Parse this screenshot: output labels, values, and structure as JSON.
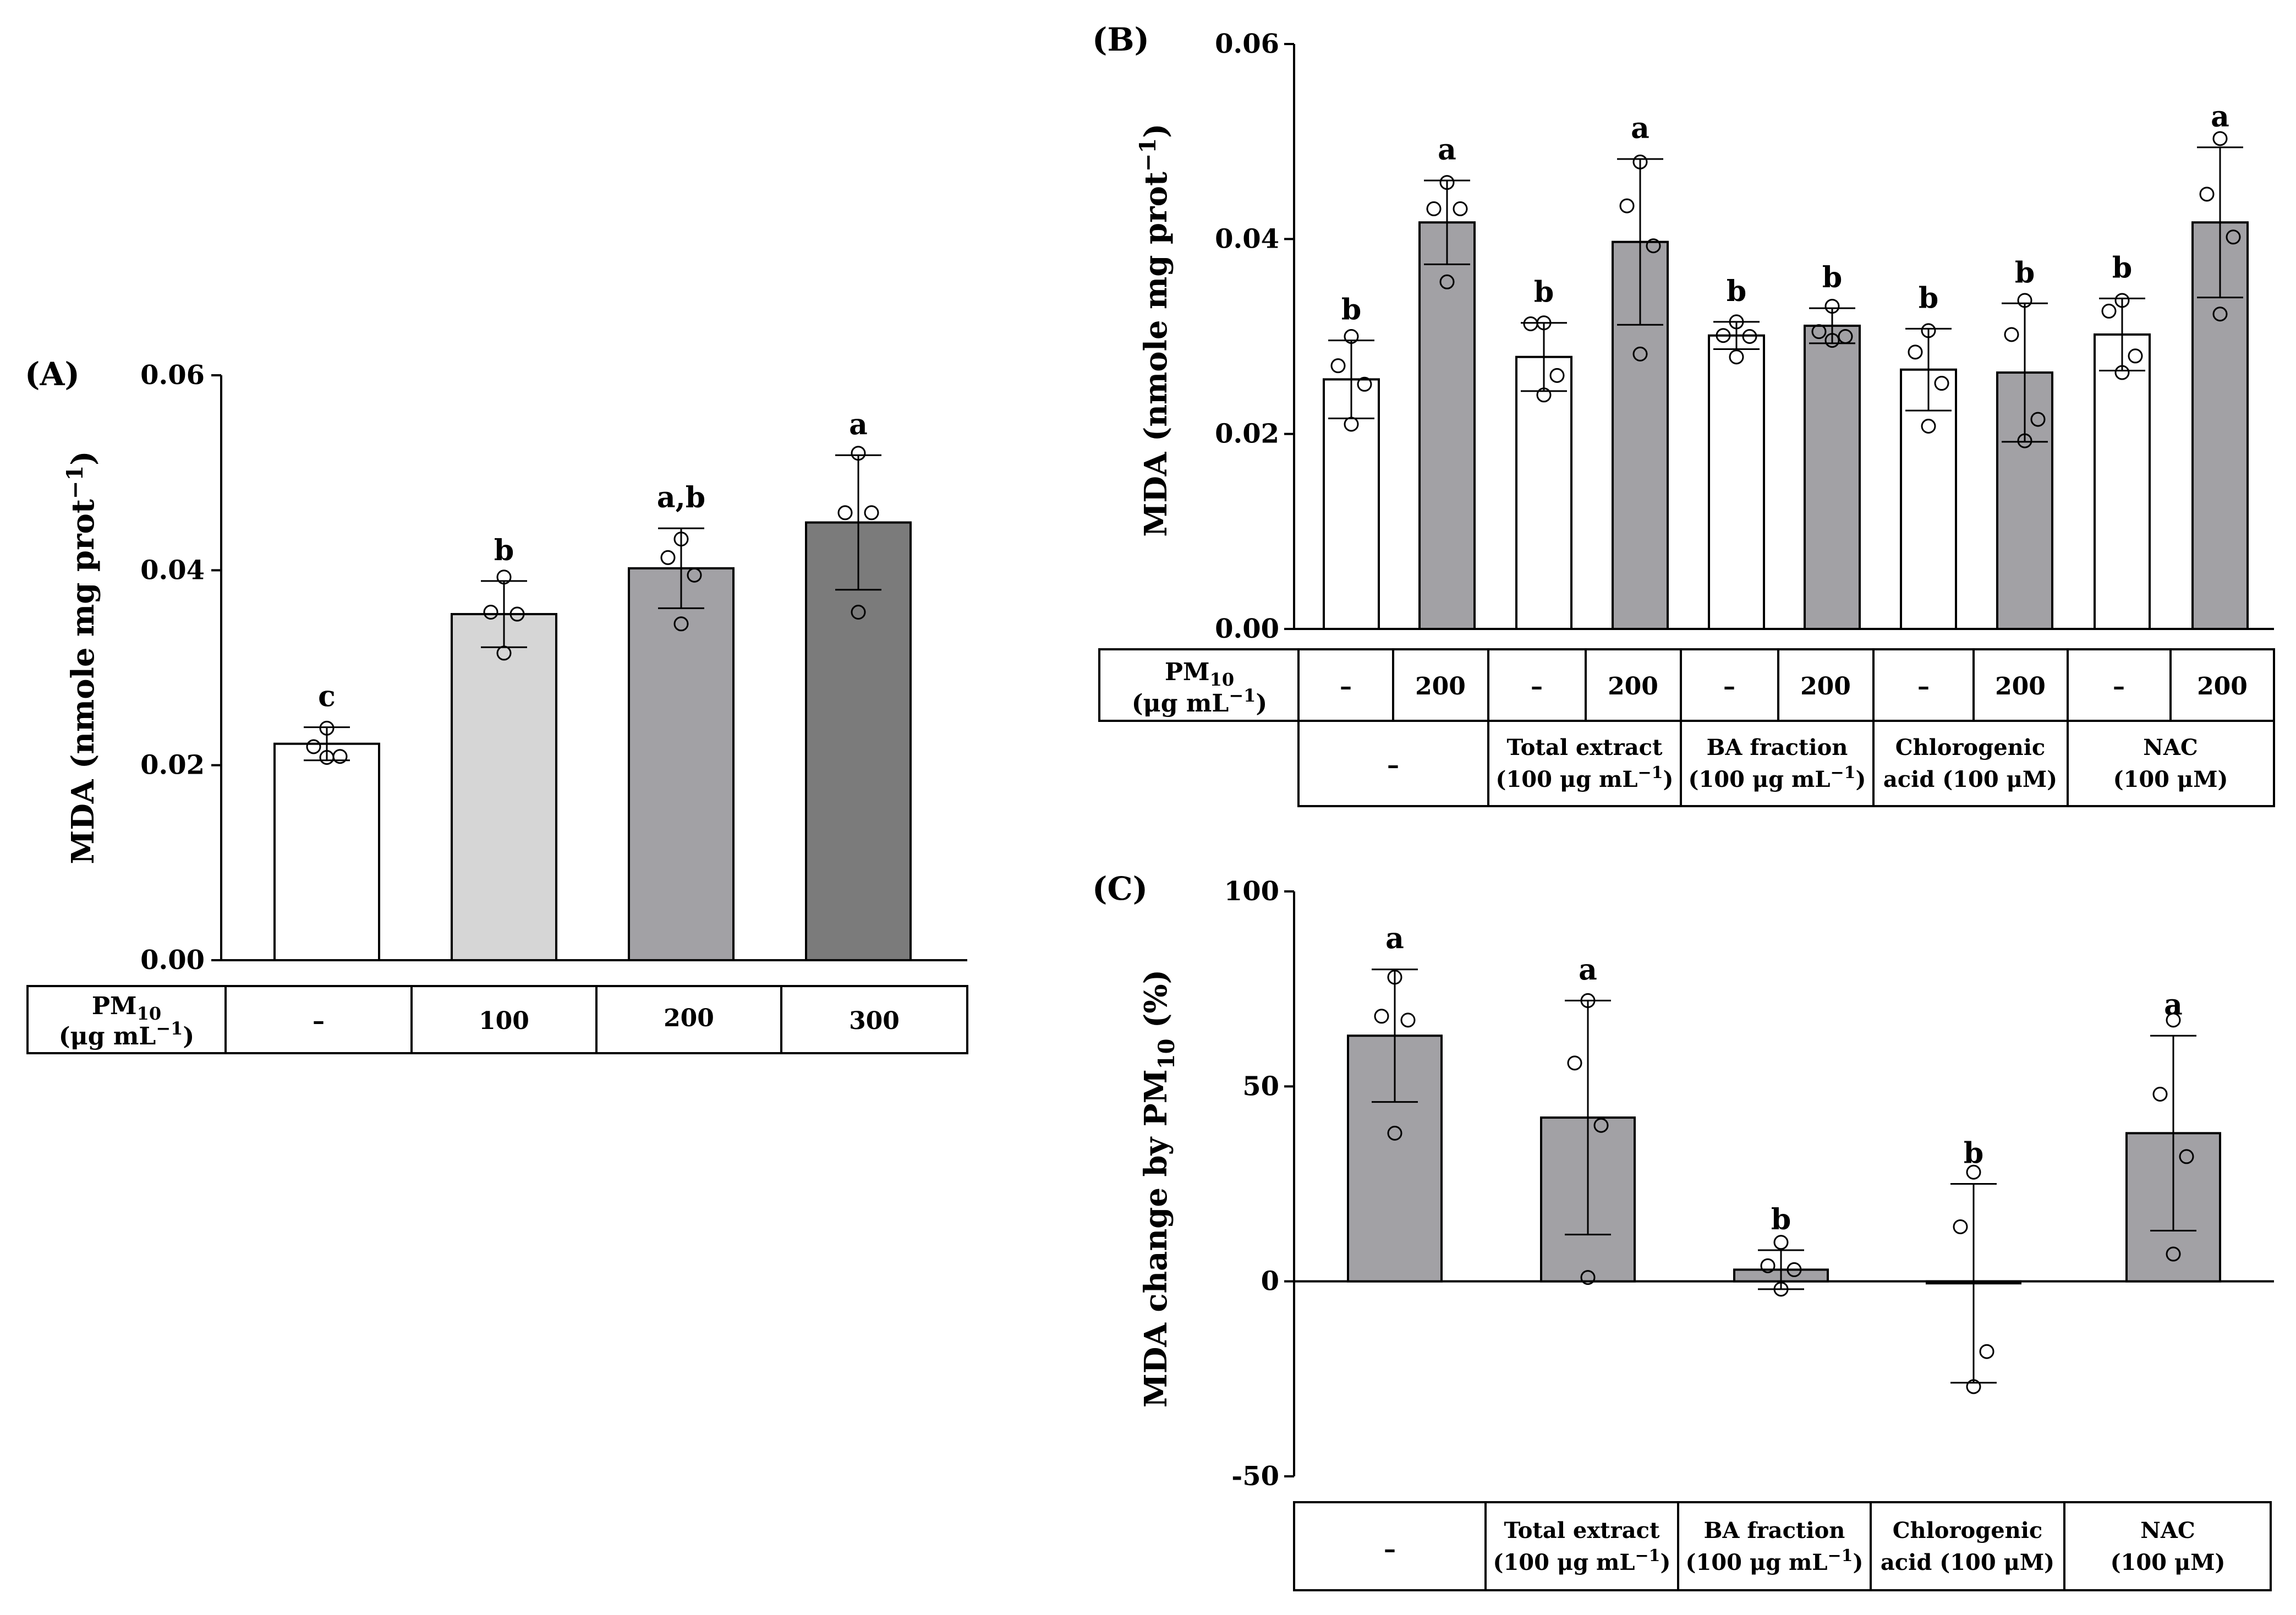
{
  "chart_data": [
    {
      "panel": "(A)",
      "type": "bar",
      "ylabel": "MDA (nmole mg prot",
      "ylabel_sup": "−1",
      "ylabel_close": ")",
      "ylim": [
        0,
        0.06
      ],
      "yticks": [
        "0.00",
        "0.02",
        "0.04",
        "0.06"
      ],
      "yticks_values": [
        0,
        0.02,
        0.04,
        0.06
      ],
      "bars": [
        {
          "value": 0.0222,
          "err": 0.0017,
          "sig": "c",
          "fill": "#ffffff",
          "points": [
            0.0238,
            0.0219,
            0.0209,
            0.0208
          ]
        },
        {
          "value": 0.0355,
          "err": 0.0034,
          "sig": "b",
          "fill": "#d6d6d6",
          "points": [
            0.0393,
            0.0357,
            0.0355,
            0.0315
          ]
        },
        {
          "value": 0.0402,
          "err": 0.0041,
          "sig": "a,b",
          "fill": "#a2a1a5",
          "points": [
            0.0432,
            0.0413,
            0.0395,
            0.0345
          ]
        },
        {
          "value": 0.0449,
          "err": 0.0069,
          "sig": "a",
          "fill": "#7b7b7b",
          "points": [
            0.052,
            0.0459,
            0.0459,
            0.0357
          ]
        }
      ],
      "table": {
        "header": "PM",
        "header_sub": "10",
        "unit": "(μg mL",
        "unit_sup": "−1",
        "unit_close": ")",
        "cells": [
          "–",
          "100",
          "200",
          "300"
        ]
      }
    },
    {
      "panel": "(B)",
      "type": "bar",
      "ylabel": "MDA (nmole mg prot",
      "ylabel_sup": "−1",
      "ylabel_close": ")",
      "ylim": [
        0,
        0.06
      ],
      "yticks": [
        "0.00",
        "0.02",
        "0.04",
        "0.06"
      ],
      "yticks_values": [
        0,
        0.02,
        0.04,
        0.06
      ],
      "bars": [
        {
          "value": 0.0256,
          "err": 0.004,
          "sig": "b",
          "fill": "#ffffff",
          "points": [
            0.03,
            0.027,
            0.0251,
            0.021
          ]
        },
        {
          "value": 0.0417,
          "err": 0.0043,
          "sig": "a",
          "fill": "#a2a1a5",
          "points": [
            0.0458,
            0.0431,
            0.0431,
            0.0356
          ]
        },
        {
          "value": 0.0279,
          "err": 0.0035,
          "sig": "b",
          "fill": "#ffffff",
          "points": [
            0.0314,
            0.0313,
            0.026,
            0.024
          ]
        },
        {
          "value": 0.0397,
          "err": 0.0085,
          "sig": "a",
          "fill": "#a2a1a5",
          "points": [
            0.0479,
            0.0434,
            0.0393,
            0.0282
          ]
        },
        {
          "value": 0.0301,
          "err": 0.0014,
          "sig": "b",
          "fill": "#ffffff",
          "points": [
            0.0315,
            0.0301,
            0.03,
            0.0279
          ]
        },
        {
          "value": 0.0311,
          "err": 0.0018,
          "sig": "b",
          "fill": "#a2a1a5",
          "points": [
            0.0331,
            0.0305,
            0.03,
            0.0296
          ]
        },
        {
          "value": 0.0266,
          "err": 0.0042,
          "sig": "b",
          "fill": "#ffffff",
          "points": [
            0.0306,
            0.0284,
            0.0252,
            0.0208
          ]
        },
        {
          "value": 0.0263,
          "err": 0.0071,
          "sig": "b",
          "fill": "#a2a1a5",
          "points": [
            0.0337,
            0.0302,
            0.0215,
            0.0193
          ]
        },
        {
          "value": 0.0302,
          "err": 0.0037,
          "sig": "b",
          "fill": "#ffffff",
          "points": [
            0.0337,
            0.0326,
            0.028,
            0.0263
          ]
        },
        {
          "value": 0.0417,
          "err": 0.0077,
          "sig": "a",
          "fill": "#a2a1a5",
          "points": [
            0.0503,
            0.0446,
            0.0402,
            0.0323
          ]
        }
      ],
      "table": {
        "header": "PM",
        "header_sub": "10",
        "unit": "(μg mL",
        "unit_sup": "−1",
        "unit_close": ")",
        "pm_cells": [
          "–",
          "200",
          "–",
          "200",
          "–",
          "200",
          "–",
          "200",
          "–",
          "200"
        ],
        "groups": [
          {
            "line1": "–",
            "line2": ""
          },
          {
            "line1": "Total extract",
            "line2": "(100 μg mL",
            "sup": "−1",
            "close": ")"
          },
          {
            "line1": "BA fraction",
            "line2": "(100 μg mL",
            "sup": "−1",
            "close": ")"
          },
          {
            "line1": "Chlorogenic",
            "line2": "acid (100 μM)"
          },
          {
            "line1": "NAC",
            "line2": "(100 μM)"
          }
        ]
      }
    },
    {
      "panel": "(C)",
      "type": "bar",
      "ylabel": "MDA change by PM",
      "ylabel_sub": "10",
      "ylabel_close": " (%)",
      "ylim": [
        -50,
        100
      ],
      "yticks": [
        "-50",
        "0",
        "50",
        "100"
      ],
      "yticks_values": [
        -50,
        0,
        50,
        100
      ],
      "bars": [
        {
          "value": 63,
          "err": 17,
          "sig": "a",
          "fill": "#a2a1a5",
          "points": [
            78,
            68,
            67,
            38
          ]
        },
        {
          "value": 42,
          "err": 30,
          "sig": "a",
          "fill": "#a2a1a5",
          "points": [
            72,
            56,
            40,
            1
          ]
        },
        {
          "value": 3,
          "err": 5,
          "sig": "b",
          "fill": "#a2a1a5",
          "points": [
            10,
            4,
            3,
            -2
          ]
        },
        {
          "value": -0.5,
          "err": 25.5,
          "sig": "b",
          "fill": "#a2a1a5",
          "points": [
            28,
            14,
            -18,
            -27
          ]
        },
        {
          "value": 38,
          "err": 25,
          "sig": "a",
          "fill": "#a2a1a5",
          "points": [
            67,
            48,
            32,
            7
          ]
        }
      ],
      "table": {
        "groups": [
          {
            "line1": "–",
            "line2": ""
          },
          {
            "line1": "Total extract",
            "line2": "(100 μg mL",
            "sup": "−1",
            "close": ")"
          },
          {
            "line1": "BA fraction",
            "line2": "(100 μg mL",
            "sup": "−1",
            "close": ")"
          },
          {
            "line1": "Chlorogenic",
            "line2": "acid (100 μM)"
          },
          {
            "line1": "NAC",
            "line2": "(100 μM)"
          }
        ]
      }
    }
  ]
}
